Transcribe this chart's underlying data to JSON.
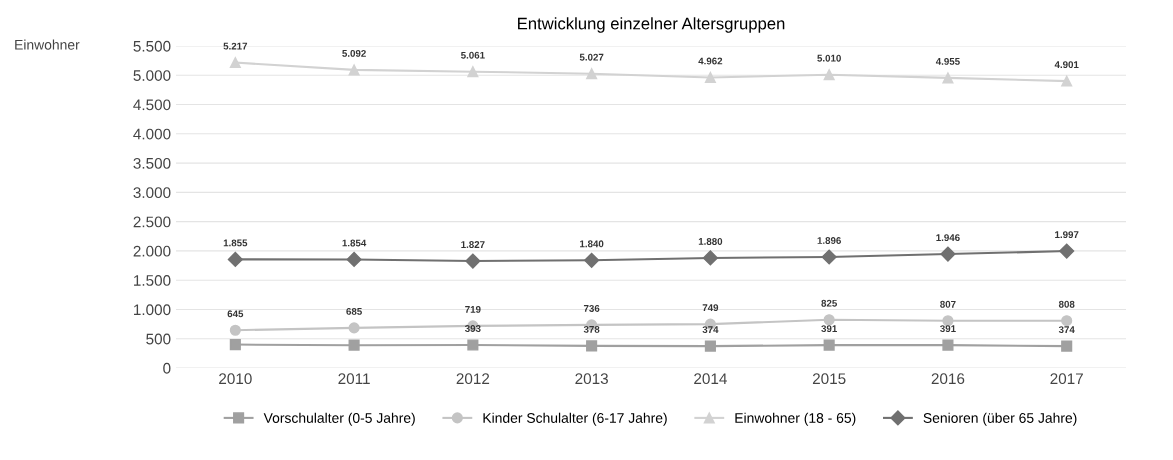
{
  "chart_data": {
    "type": "line",
    "title": "Entwicklung einzelner Altersgruppen",
    "ylabel": "Einwohner",
    "categories": [
      "2010",
      "2011",
      "2012",
      "2013",
      "2014",
      "2015",
      "2016",
      "2017"
    ],
    "ylim": [
      0,
      5500
    ],
    "yticks": [
      {
        "value": 0,
        "label": "0"
      },
      {
        "value": 500,
        "label": "500"
      },
      {
        "value": 1000,
        "label": "1.000"
      },
      {
        "value": 1500,
        "label": "1.500"
      },
      {
        "value": 2000,
        "label": "2.000"
      },
      {
        "value": 2500,
        "label": "2.500"
      },
      {
        "value": 3000,
        "label": "3.000"
      },
      {
        "value": 3500,
        "label": "3.500"
      },
      {
        "value": 4000,
        "label": "4.000"
      },
      {
        "value": 4500,
        "label": "4.500"
      },
      {
        "value": 5000,
        "label": "5.000"
      },
      {
        "value": 5500,
        "label": "5.500"
      }
    ],
    "grid": "y",
    "legend": "bottom",
    "series": [
      {
        "name": "Vorschulalter (0-5 Jahre)",
        "color": "#a0a0a0",
        "marker": "square",
        "values": [
          400,
          390,
          393,
          378,
          374,
          391,
          391,
          374
        ],
        "value_labels": [
          null,
          null,
          "393",
          "378",
          "374",
          "391",
          "391",
          "374"
        ]
      },
      {
        "name": "Kinder Schulalter (6-17 Jahre)",
        "color": "#c4c4c4",
        "marker": "circle",
        "values": [
          645,
          685,
          719,
          736,
          749,
          825,
          807,
          808
        ],
        "value_labels": [
          "645",
          "685",
          "719",
          "736",
          "749",
          "825",
          "807",
          "808"
        ]
      },
      {
        "name": "Einwohner (18 - 65)",
        "color": "#d2d2d2",
        "marker": "triangle",
        "values": [
          5217,
          5092,
          5061,
          5027,
          4962,
          5010,
          4955,
          4901
        ],
        "value_labels": [
          "5.217",
          "5.092",
          "5.061",
          "5.027",
          "4.962",
          "5.010",
          "4.955",
          "4.901"
        ]
      },
      {
        "name": "Senioren (über 65 Jahre)",
        "color": "#707070",
        "marker": "diamond",
        "values": [
          1855,
          1854,
          1827,
          1840,
          1880,
          1896,
          1946,
          1997
        ],
        "value_labels": [
          "1.855",
          "1.854",
          "1.827",
          "1.840",
          "1.880",
          "1.896",
          "1.946",
          "1.997"
        ]
      }
    ]
  }
}
